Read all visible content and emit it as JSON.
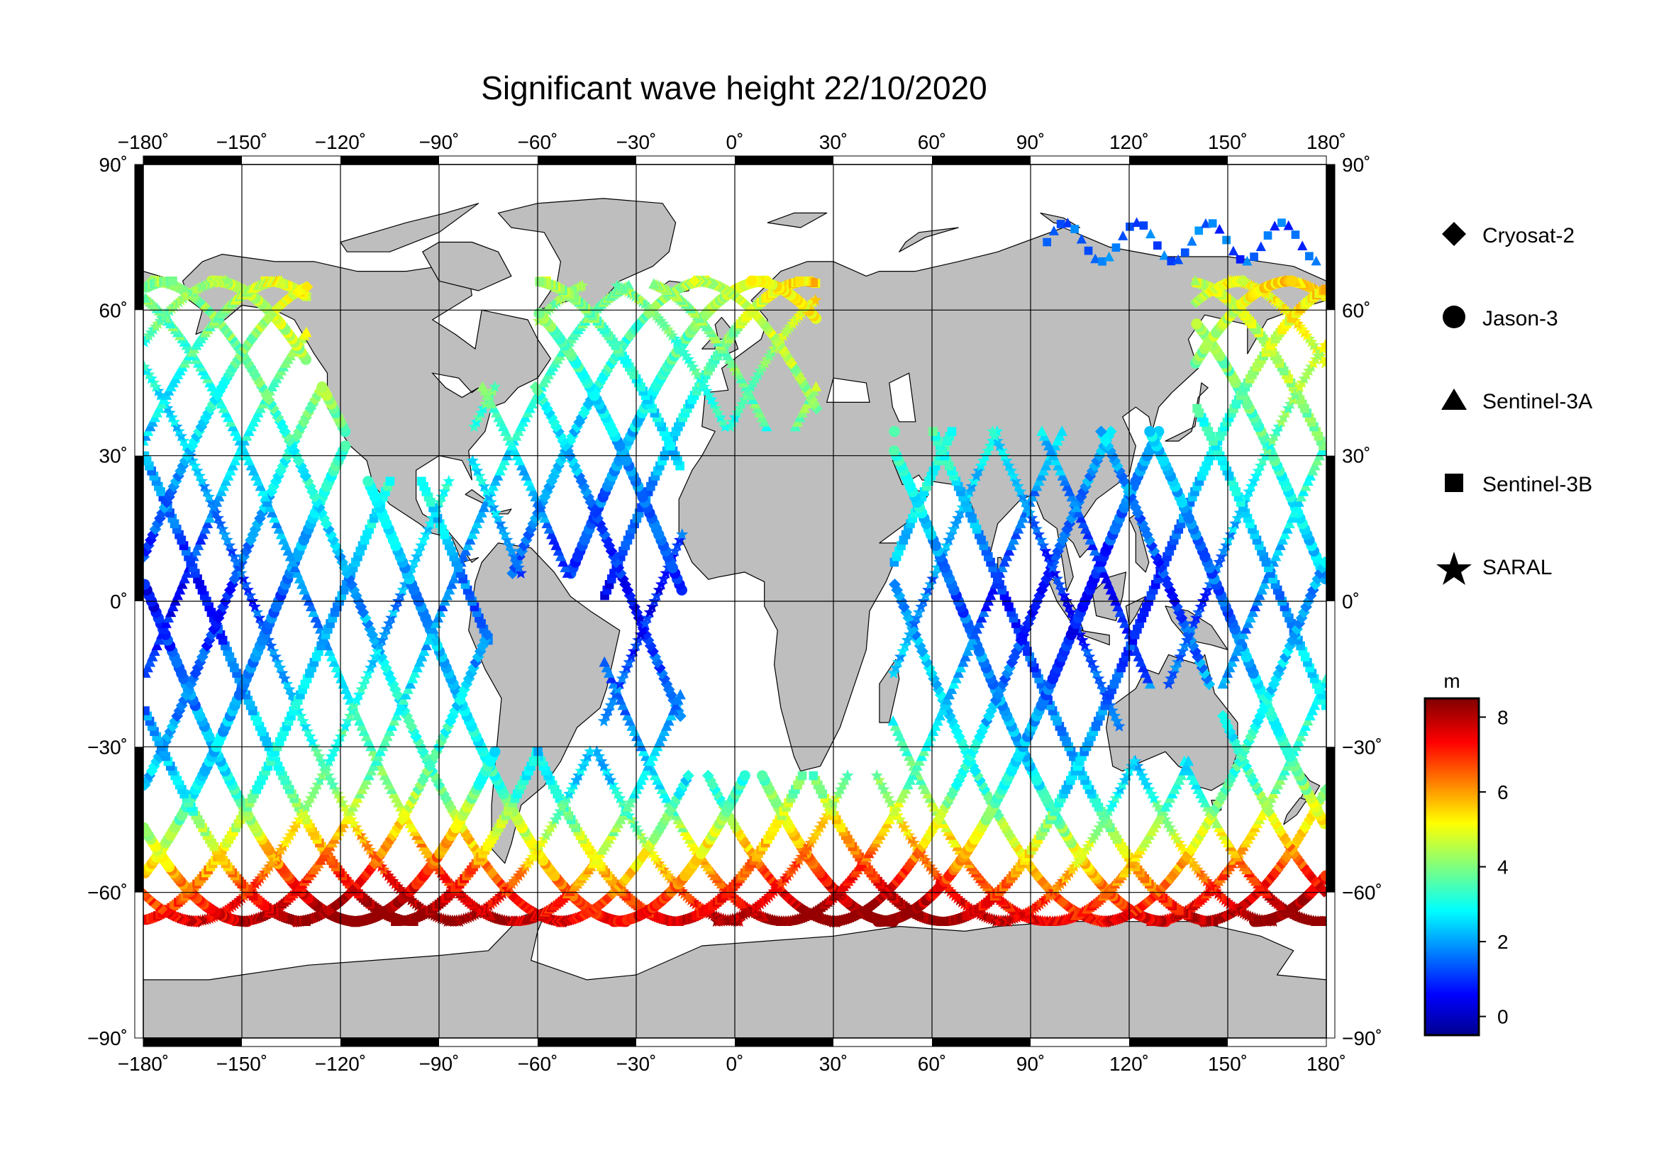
{
  "title": "Significant wave height 22/10/2020",
  "axes": {
    "lon_ticks": [
      -180,
      -150,
      -120,
      -90,
      -60,
      -30,
      0,
      30,
      60,
      90,
      120,
      150,
      180
    ],
    "lat_ticks": [
      90,
      60,
      30,
      0,
      -30,
      -60,
      -90
    ],
    "lon_range": [
      -180,
      180
    ],
    "lat_range": [
      -90,
      90
    ],
    "degree_symbol": "˚",
    "grid": true
  },
  "legend": {
    "placement": "right",
    "items": [
      {
        "label": "Cryosat-2",
        "marker": "diamond"
      },
      {
        "label": "Jason-3",
        "marker": "circle"
      },
      {
        "label": "Sentinel-3A",
        "marker": "triangle"
      },
      {
        "label": "Sentinel-3B",
        "marker": "square"
      },
      {
        "label": "SARAL",
        "marker": "star"
      }
    ]
  },
  "colorbar": {
    "unit": "m",
    "min": -0.5,
    "max": 8.5,
    "ticks": [
      0,
      2,
      4,
      6,
      8
    ],
    "colormap": "jet"
  },
  "colors": {
    "land": "#bebebe",
    "coast": "#000000",
    "ocean": "#ffffff",
    "grid": "#000000"
  }
}
